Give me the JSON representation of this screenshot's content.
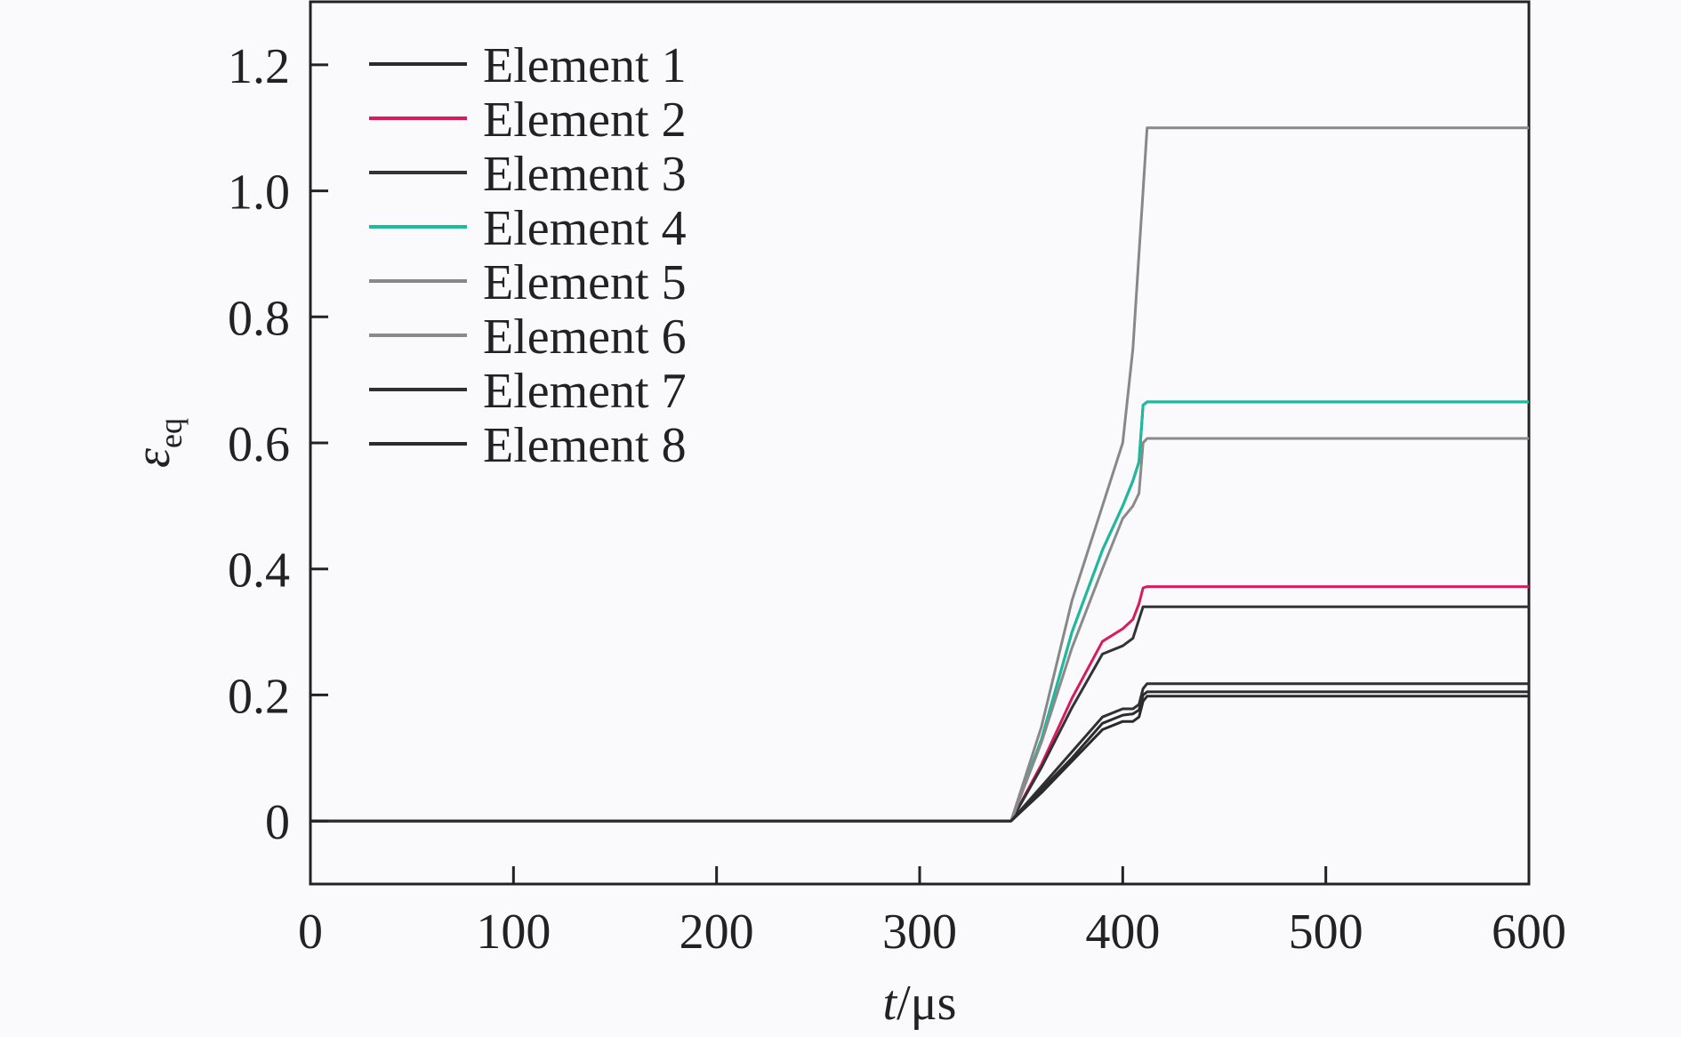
{
  "chart_data": {
    "type": "line",
    "xlabel": "t/μs",
    "xlabel_var": "t",
    "xlabel_unit": "/μs",
    "ylabel": "ε_eq",
    "ylabel_var": "ε",
    "ylabel_sub": "eq",
    "xlim": [
      0,
      600
    ],
    "ylim": [
      -0.1,
      1.3
    ],
    "xticks": [
      0,
      100,
      200,
      300,
      400,
      500,
      600
    ],
    "xtick_labels": [
      "0",
      "100",
      "200",
      "300",
      "400",
      "500",
      "600"
    ],
    "yticks": [
      0,
      0.2,
      0.4,
      0.6,
      0.8,
      1.0,
      1.2
    ],
    "ytick_labels": [
      "0",
      "0.2",
      "0.4",
      "0.6",
      "0.8",
      "1.0",
      "1.2"
    ],
    "grid": false,
    "legend_position": "top-left",
    "series": [
      {
        "name": "Element 1",
        "color": "#2a2a2a",
        "x": [
          0,
          345,
          360,
          375,
          390,
          400,
          405,
          408,
          410,
          412,
          600
        ],
        "y": [
          0,
          0,
          0.045,
          0.095,
          0.145,
          0.158,
          0.158,
          0.165,
          0.19,
          0.198,
          0.198
        ]
      },
      {
        "name": "Element 2",
        "color": "#d81b60",
        "x": [
          0,
          345,
          360,
          375,
          390,
          400,
          405,
          408,
          410,
          412,
          600
        ],
        "y": [
          0,
          0,
          0.09,
          0.195,
          0.285,
          0.305,
          0.32,
          0.345,
          0.37,
          0.372,
          0.372
        ]
      },
      {
        "name": "Element 3",
        "color": "#333333",
        "x": [
          0,
          345,
          360,
          375,
          390,
          400,
          405,
          408,
          410,
          412,
          600
        ],
        "y": [
          0,
          0,
          0.085,
          0.18,
          0.265,
          0.278,
          0.29,
          0.32,
          0.34,
          0.34,
          0.34
        ]
      },
      {
        "name": "Element 4",
        "color": "#1abc9c",
        "x": [
          0,
          345,
          360,
          375,
          390,
          400,
          405,
          408,
          410,
          412,
          600
        ],
        "y": [
          0,
          0,
          0.13,
          0.3,
          0.43,
          0.5,
          0.54,
          0.57,
          0.66,
          0.665,
          0.665
        ]
      },
      {
        "name": "Element 5",
        "color": "#888888",
        "x": [
          0,
          345,
          360,
          375,
          390,
          400,
          405,
          408,
          410,
          412,
          600
        ],
        "y": [
          0,
          0,
          0.15,
          0.35,
          0.5,
          0.6,
          0.75,
          0.9,
          1.0,
          1.1,
          1.1
        ]
      },
      {
        "name": "Element 6",
        "color": "#8a8a8a",
        "x": [
          0,
          345,
          360,
          375,
          390,
          400,
          405,
          408,
          410,
          412,
          600
        ],
        "y": [
          0,
          0,
          0.125,
          0.275,
          0.4,
          0.48,
          0.5,
          0.52,
          0.6,
          0.607,
          0.607
        ]
      },
      {
        "name": "Element 7",
        "color": "#303030",
        "x": [
          0,
          345,
          360,
          375,
          390,
          400,
          405,
          408,
          410,
          412,
          600
        ],
        "y": [
          0,
          0,
          0.055,
          0.11,
          0.165,
          0.178,
          0.178,
          0.185,
          0.21,
          0.218,
          0.218
        ]
      },
      {
        "name": "Element 8",
        "color": "#2c2c2c",
        "x": [
          0,
          345,
          360,
          375,
          390,
          400,
          405,
          408,
          410,
          412,
          600
        ],
        "y": [
          0,
          0,
          0.05,
          0.1,
          0.155,
          0.168,
          0.17,
          0.176,
          0.2,
          0.205,
          0.205
        ]
      }
    ],
    "extra_lines": [
      {
        "color": "#4b3fa8",
        "x": [
          345,
          360,
          375,
          390,
          400,
          405,
          408,
          410,
          412,
          600
        ],
        "y": [
          0,
          0.13,
          0.3,
          0.43,
          0.5,
          0.54,
          0.57,
          0.66,
          0.665,
          0.665
        ]
      }
    ]
  }
}
